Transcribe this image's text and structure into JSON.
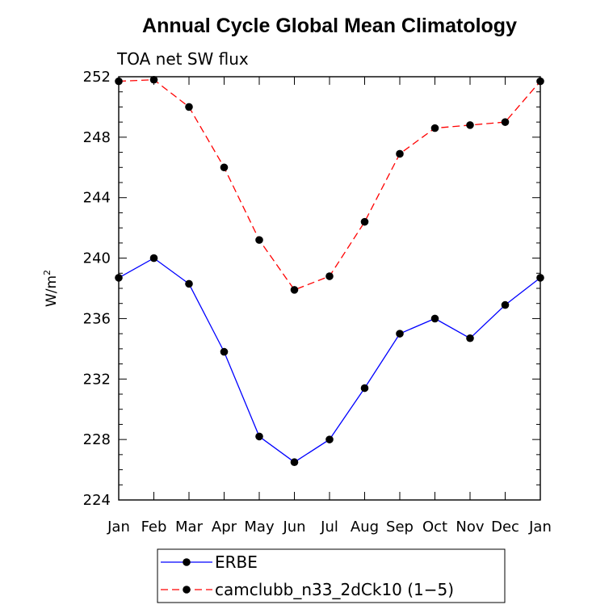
{
  "chart_data": {
    "type": "line",
    "title": "Annual Cycle Global Mean Climatology",
    "subtitle": "TOA net SW flux",
    "ylabel": "W/m",
    "ylabel_sup": "2",
    "xlabel": "",
    "categories": [
      "Jan",
      "Feb",
      "Mar",
      "Apr",
      "May",
      "Jun",
      "Jul",
      "Aug",
      "Sep",
      "Oct",
      "Nov",
      "Dec",
      "Jan"
    ],
    "ylim": [
      224,
      252
    ],
    "yticks": [
      224,
      228,
      232,
      236,
      240,
      244,
      248,
      252
    ],
    "grid": false,
    "legend_position": "bottom",
    "series": [
      {
        "name": "ERBE",
        "color": "#0000ff",
        "dash": "solid",
        "marker": "filled-circle",
        "values": [
          238.7,
          240.0,
          238.3,
          233.8,
          228.2,
          226.5,
          228.0,
          231.4,
          235.0,
          236.0,
          234.7,
          236.9,
          238.7
        ]
      },
      {
        "name": "camclubb_n33_2dCk10 (1−5)",
        "color": "#ff0000",
        "dash": "dashed",
        "marker": "filled-circle",
        "values": [
          251.7,
          251.8,
          250.0,
          246.0,
          241.2,
          237.9,
          238.8,
          242.4,
          246.9,
          248.6,
          248.8,
          249.0,
          251.7
        ]
      }
    ]
  }
}
